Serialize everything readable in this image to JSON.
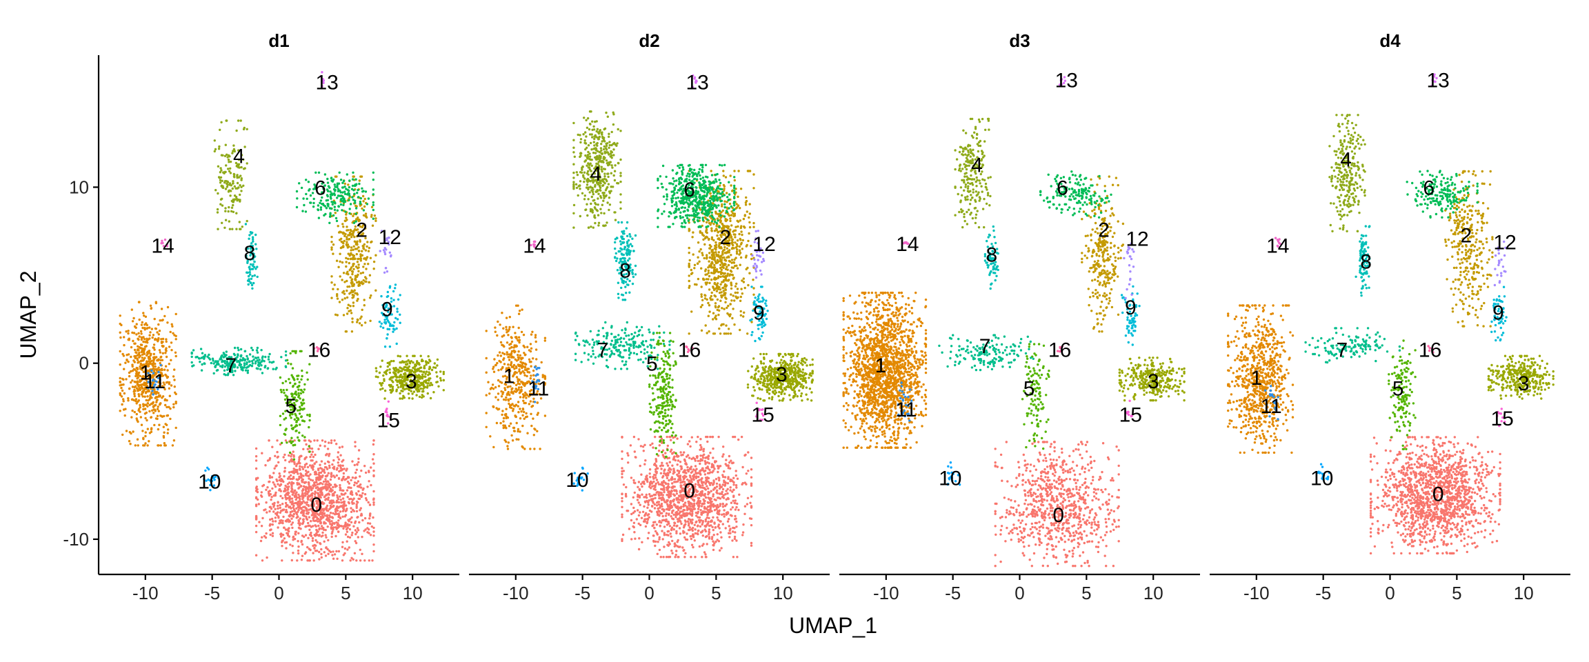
{
  "chart_data": {
    "type": "scatter",
    "xlabel": "UMAP_1",
    "ylabel": "UMAP_2",
    "xlim": [
      -13.5,
      13.5
    ],
    "ylim": [
      -12,
      17.5
    ],
    "x_ticks": [
      -10,
      -5,
      0,
      5,
      10
    ],
    "x_tick_labels": [
      "-10",
      "-5",
      "0",
      "5",
      "10"
    ],
    "y_ticks": [
      -10,
      0,
      10
    ],
    "y_tick_labels": [
      "-10",
      "0",
      "10"
    ],
    "grid": false,
    "legend": "none",
    "panels": [
      {
        "title": "d1",
        "labels": [
          {
            "text": "0",
            "x": 2.8,
            "y": -8.0
          },
          {
            "text": "1",
            "x": -10.0,
            "y": -0.5
          },
          {
            "text": "11",
            "x": -9.3,
            "y": -1.0
          },
          {
            "text": "2",
            "x": 6.2,
            "y": 7.6
          },
          {
            "text": "3",
            "x": 9.9,
            "y": -1.0
          },
          {
            "text": "4",
            "x": -3.0,
            "y": 11.8
          },
          {
            "text": "5",
            "x": 0.9,
            "y": -2.4
          },
          {
            "text": "6",
            "x": 3.1,
            "y": 10.0
          },
          {
            "text": "7",
            "x": -3.6,
            "y": -0.1
          },
          {
            "text": "8",
            "x": -2.2,
            "y": 6.3
          },
          {
            "text": "9",
            "x": 8.1,
            "y": 3.1
          },
          {
            "text": "10",
            "x": -5.2,
            "y": -6.7
          },
          {
            "text": "12",
            "x": 8.3,
            "y": 7.2
          },
          {
            "text": "13",
            "x": 3.6,
            "y": 16.0
          },
          {
            "text": "14",
            "x": -8.7,
            "y": 6.7
          },
          {
            "text": "15",
            "x": 8.2,
            "y": -3.2
          },
          {
            "text": "16",
            "x": 3.0,
            "y": 0.8
          }
        ],
        "clusters": [
          {
            "id": "0",
            "x": 2.7,
            "y": -7.8,
            "sx": 2.0,
            "sy": 1.55,
            "n": 1300
          },
          {
            "id": "1",
            "x": -9.8,
            "y": -0.6,
            "sx": 0.95,
            "sy": 1.85,
            "n": 650
          },
          {
            "id": "2",
            "x": 5.6,
            "y": 6.2,
            "sx": 0.75,
            "sy": 2.0,
            "n": 360
          },
          {
            "id": "3",
            "x": 9.8,
            "y": -0.8,
            "sx": 1.15,
            "sy": 0.55,
            "n": 380
          },
          {
            "id": "4",
            "x": -3.6,
            "y": 10.7,
            "sx": 0.55,
            "sy": 1.4,
            "n": 160
          },
          {
            "id": "5",
            "x": 1.2,
            "y": -2.4,
            "sx": 0.5,
            "sy": 1.4,
            "n": 170
          },
          {
            "id": "6",
            "x": 4.2,
            "y": 9.4,
            "sx": 1.3,
            "sy": 0.65,
            "n": 200
          },
          {
            "id": "7",
            "x": -3.0,
            "y": 0.1,
            "sx": 1.6,
            "sy": 0.35,
            "n": 230
          },
          {
            "id": "8",
            "x": -2.1,
            "y": 6.0,
            "sx": 0.22,
            "sy": 0.9,
            "n": 70
          },
          {
            "id": "9",
            "x": 8.3,
            "y": 2.7,
            "sx": 0.35,
            "sy": 0.8,
            "n": 70
          },
          {
            "id": "10",
            "x": -5.1,
            "y": -6.6,
            "sx": 0.28,
            "sy": 0.3,
            "n": 18
          },
          {
            "id": "11",
            "x": -9.4,
            "y": -1.1,
            "sx": 0.25,
            "sy": 0.45,
            "n": 20
          },
          {
            "id": "12",
            "x": 8.0,
            "y": 6.4,
            "sx": 0.2,
            "sy": 0.8,
            "n": 22
          },
          {
            "id": "13",
            "x": 3.3,
            "y": 16.1,
            "sx": 0.12,
            "sy": 0.2,
            "n": 8
          },
          {
            "id": "14",
            "x": -8.7,
            "y": 6.8,
            "sx": 0.15,
            "sy": 0.15,
            "n": 8
          },
          {
            "id": "15",
            "x": 8.1,
            "y": -2.8,
            "sx": 0.15,
            "sy": 0.3,
            "n": 10
          },
          {
            "id": "16",
            "x": 2.9,
            "y": 0.8,
            "sx": 0.12,
            "sy": 0.12,
            "n": 6
          }
        ]
      },
      {
        "title": "d2",
        "labels": [
          {
            "text": "0",
            "x": 3.0,
            "y": -7.2
          },
          {
            "text": "1",
            "x": -10.5,
            "y": -0.7
          },
          {
            "text": "11",
            "x": -8.3,
            "y": -1.4
          },
          {
            "text": "2",
            "x": 5.7,
            "y": 7.2
          },
          {
            "text": "3",
            "x": 9.9,
            "y": -0.6
          },
          {
            "text": "4",
            "x": -4.0,
            "y": 10.8
          },
          {
            "text": "5",
            "x": 0.2,
            "y": 0.0
          },
          {
            "text": "6",
            "x": 3.0,
            "y": 9.9
          },
          {
            "text": "7",
            "x": -3.5,
            "y": 0.8
          },
          {
            "text": "8",
            "x": -1.8,
            "y": 5.3
          },
          {
            "text": "9",
            "x": 8.2,
            "y": 2.9
          },
          {
            "text": "10",
            "x": -5.4,
            "y": -6.6
          },
          {
            "text": "12",
            "x": 8.6,
            "y": 6.8
          },
          {
            "text": "13",
            "x": 3.6,
            "y": 16.0
          },
          {
            "text": "14",
            "x": -8.6,
            "y": 6.7
          },
          {
            "text": "15",
            "x": 8.5,
            "y": -2.9
          },
          {
            "text": "16",
            "x": 3.0,
            "y": 0.8
          }
        ],
        "clusters": [
          {
            "id": "0",
            "x": 2.8,
            "y": -7.6,
            "sx": 2.2,
            "sy": 1.55,
            "n": 1300
          },
          {
            "id": "1",
            "x": -10.0,
            "y": -0.8,
            "sx": 1.0,
            "sy": 1.85,
            "n": 420
          },
          {
            "id": "2",
            "x": 5.4,
            "y": 6.3,
            "sx": 1.1,
            "sy": 2.1,
            "n": 700
          },
          {
            "id": "3",
            "x": 9.8,
            "y": -0.8,
            "sx": 1.1,
            "sy": 0.6,
            "n": 480
          },
          {
            "id": "4",
            "x": -3.9,
            "y": 11.0,
            "sx": 0.8,
            "sy": 1.5,
            "n": 420
          },
          {
            "id": "5",
            "x": 1.0,
            "y": -1.8,
            "sx": 0.45,
            "sy": 1.6,
            "n": 220
          },
          {
            "id": "6",
            "x": 3.5,
            "y": 9.5,
            "sx": 1.3,
            "sy": 0.8,
            "n": 520
          },
          {
            "id": "7",
            "x": -2.0,
            "y": 1.0,
            "sx": 1.6,
            "sy": 0.6,
            "n": 200
          },
          {
            "id": "8",
            "x": -1.8,
            "y": 5.8,
            "sx": 0.35,
            "sy": 1.0,
            "n": 150
          },
          {
            "id": "9",
            "x": 8.2,
            "y": 2.8,
            "sx": 0.3,
            "sy": 0.7,
            "n": 70
          },
          {
            "id": "10",
            "x": -5.2,
            "y": -6.6,
            "sx": 0.28,
            "sy": 0.3,
            "n": 18
          },
          {
            "id": "11",
            "x": -8.5,
            "y": -1.2,
            "sx": 0.25,
            "sy": 0.5,
            "n": 20
          },
          {
            "id": "12",
            "x": 8.1,
            "y": 6.2,
            "sx": 0.25,
            "sy": 0.8,
            "n": 30
          },
          {
            "id": "13",
            "x": 3.4,
            "y": 16.1,
            "sx": 0.12,
            "sy": 0.2,
            "n": 8
          },
          {
            "id": "14",
            "x": -8.6,
            "y": 6.8,
            "sx": 0.15,
            "sy": 0.15,
            "n": 8
          },
          {
            "id": "15",
            "x": 8.3,
            "y": -2.8,
            "sx": 0.15,
            "sy": 0.3,
            "n": 12
          },
          {
            "id": "16",
            "x": 3.0,
            "y": 0.8,
            "sx": 0.12,
            "sy": 0.12,
            "n": 6
          }
        ]
      },
      {
        "title": "d3",
        "labels": [
          {
            "text": "0",
            "x": 2.9,
            "y": -8.6
          },
          {
            "text": "1",
            "x": -10.4,
            "y": -0.1
          },
          {
            "text": "11",
            "x": -8.5,
            "y": -2.6
          },
          {
            "text": "2",
            "x": 6.3,
            "y": 7.6
          },
          {
            "text": "3",
            "x": 10.0,
            "y": -1.0
          },
          {
            "text": "4",
            "x": -3.2,
            "y": 11.3
          },
          {
            "text": "5",
            "x": 0.7,
            "y": -1.4
          },
          {
            "text": "6",
            "x": 3.2,
            "y": 10.0
          },
          {
            "text": "7",
            "x": -2.6,
            "y": 1.0
          },
          {
            "text": "8",
            "x": -2.1,
            "y": 6.2
          },
          {
            "text": "9",
            "x": 8.3,
            "y": 3.2
          },
          {
            "text": "10",
            "x": -5.2,
            "y": -6.5
          },
          {
            "text": "12",
            "x": 8.8,
            "y": 7.1
          },
          {
            "text": "13",
            "x": 3.5,
            "y": 16.1
          },
          {
            "text": "14",
            "x": -8.4,
            "y": 6.8
          },
          {
            "text": "15",
            "x": 8.3,
            "y": -2.9
          },
          {
            "text": "16",
            "x": 3.0,
            "y": 0.8
          }
        ],
        "clusters": [
          {
            "id": "0",
            "x": 2.8,
            "y": -8.0,
            "sx": 2.1,
            "sy": 1.6,
            "n": 800
          },
          {
            "id": "1",
            "x": -10.1,
            "y": -0.4,
            "sx": 1.4,
            "sy": 2.0,
            "n": 1700
          },
          {
            "id": "2",
            "x": 6.2,
            "y": 6.2,
            "sx": 0.7,
            "sy": 2.0,
            "n": 280
          },
          {
            "id": "3",
            "x": 9.9,
            "y": -0.9,
            "sx": 1.1,
            "sy": 0.55,
            "n": 300
          },
          {
            "id": "4",
            "x": -3.5,
            "y": 10.8,
            "sx": 0.6,
            "sy": 1.4,
            "n": 220
          },
          {
            "id": "5",
            "x": 1.2,
            "y": -2.0,
            "sx": 0.45,
            "sy": 1.4,
            "n": 120
          },
          {
            "id": "6",
            "x": 4.2,
            "y": 9.6,
            "sx": 1.2,
            "sy": 0.6,
            "n": 160
          },
          {
            "id": "7",
            "x": -2.5,
            "y": 0.6,
            "sx": 1.6,
            "sy": 0.45,
            "n": 150
          },
          {
            "id": "8",
            "x": -2.1,
            "y": 6.0,
            "sx": 0.22,
            "sy": 0.8,
            "n": 70
          },
          {
            "id": "9",
            "x": 8.3,
            "y": 2.6,
            "sx": 0.3,
            "sy": 0.8,
            "n": 60
          },
          {
            "id": "10",
            "x": -5.1,
            "y": -6.3,
            "sx": 0.28,
            "sy": 0.3,
            "n": 18
          },
          {
            "id": "11",
            "x": -8.6,
            "y": -2.3,
            "sx": 0.3,
            "sy": 0.6,
            "n": 25
          },
          {
            "id": "12",
            "x": 8.3,
            "y": 5.6,
            "sx": 0.22,
            "sy": 0.9,
            "n": 22
          },
          {
            "id": "13",
            "x": 3.2,
            "y": 16.0,
            "sx": 0.12,
            "sy": 0.2,
            "n": 8
          },
          {
            "id": "14",
            "x": -8.5,
            "y": 6.8,
            "sx": 0.15,
            "sy": 0.15,
            "n": 8
          },
          {
            "id": "15",
            "x": 8.2,
            "y": -2.8,
            "sx": 0.15,
            "sy": 0.3,
            "n": 10
          },
          {
            "id": "16",
            "x": 3.0,
            "y": 0.8,
            "sx": 0.12,
            "sy": 0.12,
            "n": 6
          }
        ]
      },
      {
        "title": "d4",
        "labels": [
          {
            "text": "0",
            "x": 3.6,
            "y": -7.4
          },
          {
            "text": "1",
            "x": -10.0,
            "y": -0.8
          },
          {
            "text": "11",
            "x": -8.9,
            "y": -2.4
          },
          {
            "text": "2",
            "x": 5.7,
            "y": 7.3
          },
          {
            "text": "3",
            "x": 10.0,
            "y": -1.1
          },
          {
            "text": "4",
            "x": -3.3,
            "y": 11.6
          },
          {
            "text": "5",
            "x": 0.6,
            "y": -1.4
          },
          {
            "text": "6",
            "x": 2.9,
            "y": 10.0
          },
          {
            "text": "7",
            "x": -3.6,
            "y": 0.8
          },
          {
            "text": "8",
            "x": -1.8,
            "y": 5.8
          },
          {
            "text": "9",
            "x": 8.1,
            "y": 2.9
          },
          {
            "text": "10",
            "x": -5.1,
            "y": -6.5
          },
          {
            "text": "12",
            "x": 8.6,
            "y": 6.9
          },
          {
            "text": "13",
            "x": 3.6,
            "y": 16.1
          },
          {
            "text": "14",
            "x": -8.4,
            "y": 6.7
          },
          {
            "text": "15",
            "x": 8.4,
            "y": -3.1
          },
          {
            "text": "16",
            "x": 3.0,
            "y": 0.8
          }
        ],
        "clusters": [
          {
            "id": "0",
            "x": 3.4,
            "y": -7.5,
            "sx": 2.2,
            "sy": 1.5,
            "n": 1400
          },
          {
            "id": "1",
            "x": -9.7,
            "y": -0.9,
            "sx": 1.1,
            "sy": 1.9,
            "n": 750
          },
          {
            "id": "2",
            "x": 5.9,
            "y": 6.5,
            "sx": 0.8,
            "sy": 2.0,
            "n": 320
          },
          {
            "id": "3",
            "x": 9.8,
            "y": -0.8,
            "sx": 1.1,
            "sy": 0.55,
            "n": 330
          },
          {
            "id": "4",
            "x": -3.2,
            "y": 10.8,
            "sx": 0.6,
            "sy": 1.5,
            "n": 260
          },
          {
            "id": "5",
            "x": 0.9,
            "y": -1.8,
            "sx": 0.45,
            "sy": 1.4,
            "n": 140
          },
          {
            "id": "6",
            "x": 3.9,
            "y": 9.6,
            "sx": 1.2,
            "sy": 0.6,
            "n": 180
          },
          {
            "id": "7",
            "x": -2.8,
            "y": 1.0,
            "sx": 1.6,
            "sy": 0.45,
            "n": 130
          },
          {
            "id": "8",
            "x": -2.0,
            "y": 5.8,
            "sx": 0.25,
            "sy": 0.9,
            "n": 90
          },
          {
            "id": "9",
            "x": 8.1,
            "y": 2.8,
            "sx": 0.3,
            "sy": 0.8,
            "n": 55
          },
          {
            "id": "10",
            "x": -5.0,
            "y": -6.4,
            "sx": 0.28,
            "sy": 0.3,
            "n": 18
          },
          {
            "id": "11",
            "x": -8.8,
            "y": -2.1,
            "sx": 0.25,
            "sy": 0.5,
            "n": 20
          },
          {
            "id": "12",
            "x": 8.2,
            "y": 5.8,
            "sx": 0.2,
            "sy": 0.9,
            "n": 22
          },
          {
            "id": "13",
            "x": 3.3,
            "y": 16.1,
            "sx": 0.12,
            "sy": 0.2,
            "n": 8
          },
          {
            "id": "14",
            "x": -8.5,
            "y": 6.8,
            "sx": 0.15,
            "sy": 0.15,
            "n": 8
          },
          {
            "id": "15",
            "x": 8.3,
            "y": -2.9,
            "sx": 0.15,
            "sy": 0.3,
            "n": 10
          },
          {
            "id": "16",
            "x": 3.0,
            "y": 0.8,
            "sx": 0.12,
            "sy": 0.12,
            "n": 6
          }
        ]
      }
    ],
    "cluster_colors": {
      "0": "#F8766D",
      "1": "#E38900",
      "2": "#C49A00",
      "3": "#99A800",
      "4": "#8FAA1A",
      "5": "#53B400",
      "6": "#00BC56",
      "7": "#00BE8C",
      "8": "#00C0B8",
      "9": "#00BCD8",
      "10": "#00A6FF",
      "11": "#2E8FE8",
      "12": "#A58AFF",
      "13": "#DF70F8",
      "14": "#F066C8",
      "15": "#FB61D7",
      "16": "#FF66A8"
    }
  }
}
